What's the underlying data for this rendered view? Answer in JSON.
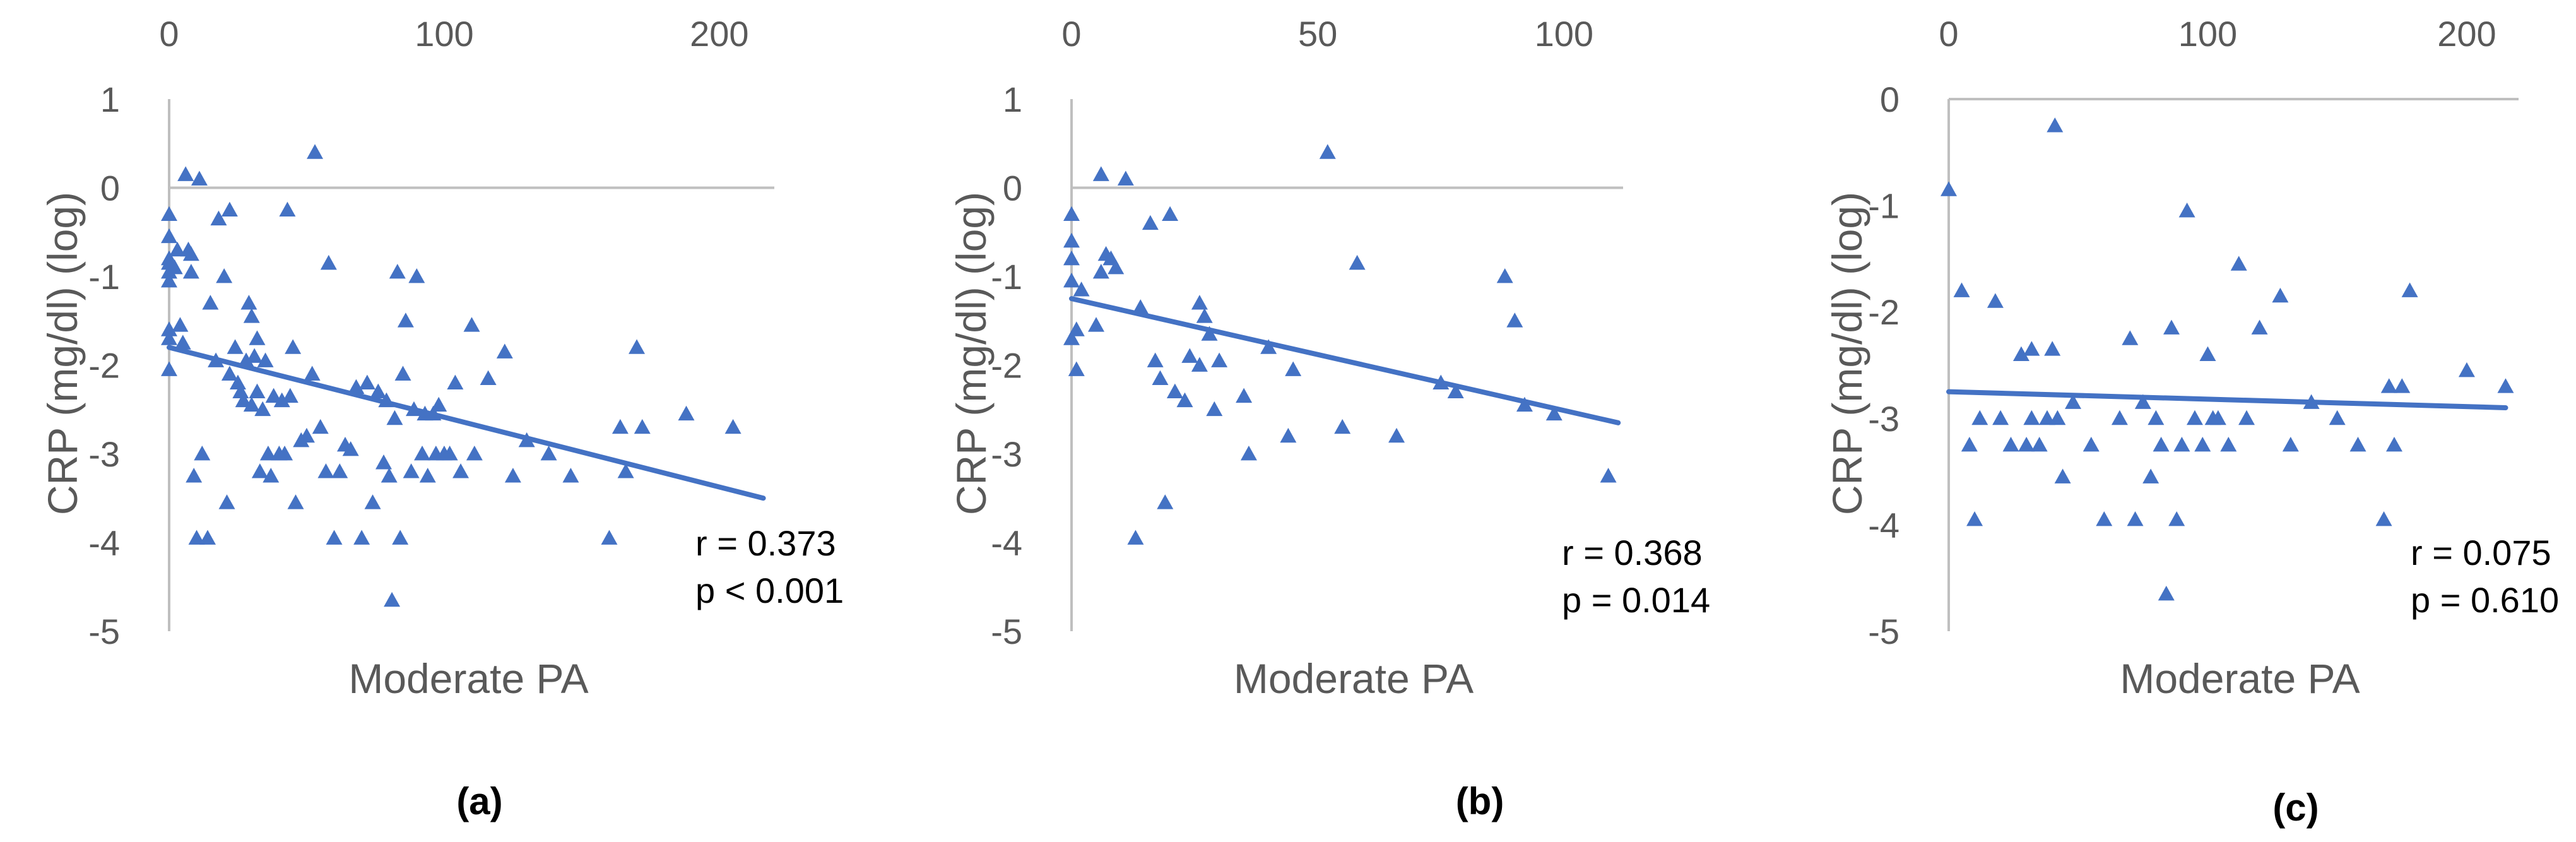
{
  "colors": {
    "series": "#4472C4",
    "axis": "#BFBFBF",
    "text": "#595959"
  },
  "chart_data": [
    {
      "type": "scatter",
      "panel_label": "(a)",
      "xlabel": "Moderate PA",
      "ylabel": "CRP  (mg/dl) (log)",
      "xlim": [
        0,
        220
      ],
      "ylim": [
        -5,
        1
      ],
      "xticks": [
        "0",
        "100",
        "200"
      ],
      "yticks": [
        "1",
        "0",
        "-1",
        "-2",
        "-3",
        "-4",
        "-5"
      ],
      "stat_r": "r = 0.373",
      "stat_p": "p < 0.001",
      "trendline": [
        [
          0,
          -1.8
        ],
        [
          216,
          -3.5
        ]
      ],
      "points": [
        [
          0,
          -0.3
        ],
        [
          0,
          -0.55
        ],
        [
          0,
          -0.8
        ],
        [
          0,
          -0.85
        ],
        [
          0,
          -0.95
        ],
        [
          0,
          -1.05
        ],
        [
          0,
          -1.6
        ],
        [
          0,
          -1.7
        ],
        [
          0,
          -2.05
        ],
        [
          2,
          -0.9
        ],
        [
          3,
          -0.7
        ],
        [
          4,
          -1.55
        ],
        [
          5,
          -1.75
        ],
        [
          6,
          0.15
        ],
        [
          7,
          -0.7
        ],
        [
          8,
          -0.75
        ],
        [
          8,
          -0.95
        ],
        [
          9,
          -3.25
        ],
        [
          10,
          -3.95
        ],
        [
          11,
          0.1
        ],
        [
          12,
          -3.0
        ],
        [
          14,
          -3.95
        ],
        [
          15,
          -1.3
        ],
        [
          17,
          -1.95
        ],
        [
          18,
          -0.35
        ],
        [
          20,
          -1.0
        ],
        [
          21,
          -3.55
        ],
        [
          22,
          -0.25
        ],
        [
          22,
          -2.1
        ],
        [
          24,
          -1.8
        ],
        [
          25,
          -2.2
        ],
        [
          26,
          -2.3
        ],
        [
          27,
          -2.4
        ],
        [
          28,
          -1.95
        ],
        [
          29,
          -1.3
        ],
        [
          30,
          -1.45
        ],
        [
          30,
          -2.45
        ],
        [
          31,
          -1.9
        ],
        [
          32,
          -2.3
        ],
        [
          32,
          -1.7
        ],
        [
          33,
          -3.2
        ],
        [
          34,
          -2.5
        ],
        [
          35,
          -1.95
        ],
        [
          36,
          -3.0
        ],
        [
          37,
          -3.25
        ],
        [
          38,
          -2.35
        ],
        [
          40,
          -3.0
        ],
        [
          41,
          -2.4
        ],
        [
          42,
          -3.0
        ],
        [
          43,
          -0.25
        ],
        [
          44,
          -2.35
        ],
        [
          45,
          -1.8
        ],
        [
          46,
          -3.55
        ],
        [
          48,
          -2.85
        ],
        [
          50,
          -2.8
        ],
        [
          52,
          -2.1
        ],
        [
          53,
          0.4
        ],
        [
          55,
          -2.7
        ],
        [
          57,
          -3.2
        ],
        [
          58,
          -0.85
        ],
        [
          60,
          -3.95
        ],
        [
          62,
          -3.2
        ],
        [
          64,
          -2.9
        ],
        [
          66,
          -2.95
        ],
        [
          68,
          -2.25
        ],
        [
          70,
          -3.95
        ],
        [
          72,
          -2.2
        ],
        [
          74,
          -3.55
        ],
        [
          76,
          -2.3
        ],
        [
          78,
          -3.1
        ],
        [
          79,
          -2.4
        ],
        [
          80,
          -3.25
        ],
        [
          81,
          -4.65
        ],
        [
          82,
          -2.6
        ],
        [
          83,
          -0.95
        ],
        [
          84,
          -3.95
        ],
        [
          85,
          -2.1
        ],
        [
          86,
          -1.5
        ],
        [
          88,
          -3.2
        ],
        [
          89,
          -2.5
        ],
        [
          90,
          -1.0
        ],
        [
          92,
          -3.0
        ],
        [
          93,
          -2.55
        ],
        [
          94,
          -3.25
        ],
        [
          96,
          -2.55
        ],
        [
          97,
          -3.0
        ],
        [
          98,
          -2.45
        ],
        [
          100,
          -3.0
        ],
        [
          102,
          -3.0
        ],
        [
          104,
          -2.2
        ],
        [
          106,
          -3.2
        ],
        [
          110,
          -1.55
        ],
        [
          111,
          -3.0
        ],
        [
          116,
          -2.15
        ],
        [
          122,
          -1.85
        ],
        [
          125,
          -3.25
        ],
        [
          130,
          -2.85
        ],
        [
          138,
          -3.0
        ],
        [
          146,
          -3.25
        ],
        [
          160,
          -3.95
        ],
        [
          164,
          -2.7
        ],
        [
          166,
          -3.2
        ],
        [
          170,
          -1.8
        ],
        [
          172,
          -2.7
        ],
        [
          188,
          -2.55
        ],
        [
          205,
          -2.7
        ]
      ]
    },
    {
      "type": "scatter",
      "panel_label": "(b)",
      "xlabel": "Moderate PA",
      "ylabel": "CRP  (mg/dl) (log)",
      "xlim": [
        0,
        112
      ],
      "ylim": [
        -5,
        1
      ],
      "xticks": [
        "0",
        "50",
        "100"
      ],
      "yticks": [
        "1",
        "0",
        "-1",
        "-2",
        "-3",
        "-4",
        "-5"
      ],
      "stat_r": "r = 0.368",
      "stat_p": "p = 0.014",
      "trendline": [
        [
          0,
          -1.25
        ],
        [
          111,
          -2.65
        ]
      ],
      "points": [
        [
          0,
          -0.3
        ],
        [
          0,
          -0.6
        ],
        [
          0,
          -0.8
        ],
        [
          0,
          -1.05
        ],
        [
          0,
          -1.7
        ],
        [
          1,
          -1.6
        ],
        [
          1,
          -2.05
        ],
        [
          2,
          -1.15
        ],
        [
          5,
          -1.55
        ],
        [
          6,
          -0.95
        ],
        [
          6,
          0.15
        ],
        [
          7,
          -0.75
        ],
        [
          8,
          -0.8
        ],
        [
          9,
          -0.9
        ],
        [
          11,
          0.1
        ],
        [
          13,
          -3.95
        ],
        [
          14,
          -1.35
        ],
        [
          16,
          -0.4
        ],
        [
          17,
          -1.95
        ],
        [
          18,
          -2.15
        ],
        [
          19,
          -3.55
        ],
        [
          20,
          -0.3
        ],
        [
          21,
          -2.3
        ],
        [
          23,
          -2.4
        ],
        [
          24,
          -1.9
        ],
        [
          26,
          -1.3
        ],
        [
          26,
          -2.0
        ],
        [
          27,
          -1.45
        ],
        [
          28,
          -1.65
        ],
        [
          29,
          -2.5
        ],
        [
          30,
          -1.95
        ],
        [
          35,
          -2.35
        ],
        [
          36,
          -3.0
        ],
        [
          40,
          -1.8
        ],
        [
          44,
          -2.8
        ],
        [
          45,
          -2.05
        ],
        [
          52,
          0.4
        ],
        [
          55,
          -2.7
        ],
        [
          58,
          -0.85
        ],
        [
          66,
          -2.8
        ],
        [
          75,
          -2.2
        ],
        [
          78,
          -2.3
        ],
        [
          88,
          -1.0
        ],
        [
          90,
          -1.5
        ],
        [
          92,
          -2.45
        ],
        [
          98,
          -2.55
        ],
        [
          109,
          -3.25
        ]
      ]
    },
    {
      "type": "scatter",
      "panel_label": "(c)",
      "xlabel": "Moderate PA",
      "ylabel": "CRP  (mg/dl) (log)",
      "xlim": [
        0,
        220
      ],
      "ylim": [
        -5,
        0
      ],
      "xticks": [
        "0",
        "100",
        "200"
      ],
      "yticks": [
        "0",
        "-1",
        "-2",
        "-3",
        "-4",
        "-5"
      ],
      "stat_r": "r = 0.075",
      "stat_p": "p = 0.610",
      "trendline": [
        [
          0,
          -2.75
        ],
        [
          215,
          -2.9
        ]
      ],
      "points": [
        [
          0,
          -0.85
        ],
        [
          5,
          -1.8
        ],
        [
          8,
          -3.25
        ],
        [
          10,
          -3.95
        ],
        [
          12,
          -3.0
        ],
        [
          18,
          -1.9
        ],
        [
          20,
          -3.0
        ],
        [
          24,
          -3.25
        ],
        [
          28,
          -2.4
        ],
        [
          30,
          -3.25
        ],
        [
          32,
          -2.35
        ],
        [
          32,
          -3.0
        ],
        [
          35,
          -3.25
        ],
        [
          38,
          -3.0
        ],
        [
          40,
          -2.35
        ],
        [
          41,
          -0.25
        ],
        [
          42,
          -3.0
        ],
        [
          44,
          -3.55
        ],
        [
          48,
          -2.85
        ],
        [
          55,
          -3.25
        ],
        [
          60,
          -3.95
        ],
        [
          66,
          -3.0
        ],
        [
          70,
          -2.25
        ],
        [
          72,
          -3.95
        ],
        [
          75,
          -2.85
        ],
        [
          78,
          -3.55
        ],
        [
          80,
          -3.0
        ],
        [
          82,
          -3.25
        ],
        [
          84,
          -4.65
        ],
        [
          86,
          -2.15
        ],
        [
          88,
          -3.95
        ],
        [
          90,
          -3.25
        ],
        [
          92,
          -1.05
        ],
        [
          95,
          -3.0
        ],
        [
          98,
          -3.25
        ],
        [
          100,
          -2.4
        ],
        [
          102,
          -3.0
        ],
        [
          104,
          -3.0
        ],
        [
          108,
          -3.25
        ],
        [
          112,
          -1.55
        ],
        [
          115,
          -3.0
        ],
        [
          120,
          -2.15
        ],
        [
          128,
          -1.85
        ],
        [
          132,
          -3.25
        ],
        [
          140,
          -2.85
        ],
        [
          150,
          -3.0
        ],
        [
          158,
          -3.25
        ],
        [
          168,
          -3.95
        ],
        [
          170,
          -2.7
        ],
        [
          172,
          -3.25
        ],
        [
          175,
          -2.7
        ],
        [
          178,
          -1.8
        ],
        [
          200,
          -2.55
        ],
        [
          215,
          -2.7
        ]
      ]
    }
  ]
}
